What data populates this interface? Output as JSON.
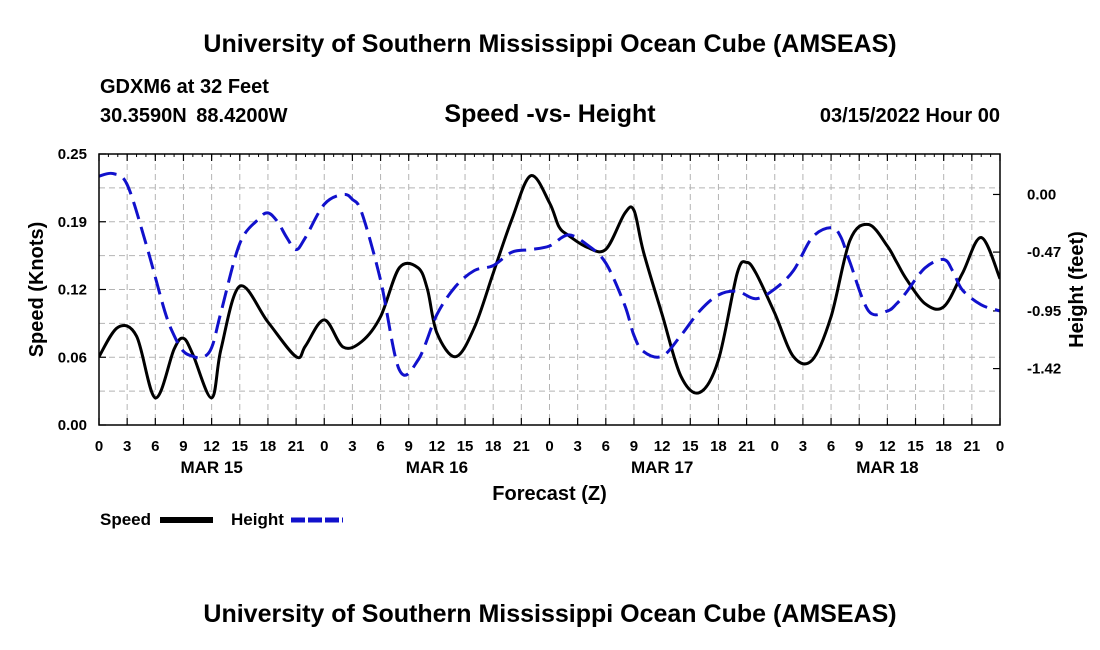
{
  "page": {
    "title_top": "University of Southern Mississippi Ocean Cube (AMSEAS)",
    "title_bottom": "University of Southern Mississippi Ocean Cube (AMSEAS)",
    "station": "GDXM6 at 32 Feet",
    "coords": "30.3590N  88.4200W",
    "datetime": "03/15/2022 Hour 00"
  },
  "colors": {
    "speed": "#000000",
    "height": "#1111cc",
    "grid": "#b4b4b4"
  },
  "chart_data": {
    "type": "line",
    "title": "Speed -vs- Height",
    "xlabel": "Forecast (Z)",
    "ylabel_left": "Speed (Knots)",
    "ylabel_right": "Height (feet)",
    "x_range_hours": [
      0,
      96
    ],
    "x_tick_labels": [
      "0",
      "3",
      "6",
      "9",
      "12",
      "15",
      "18",
      "21",
      "0",
      "3",
      "6",
      "9",
      "12",
      "15",
      "18",
      "21",
      "0",
      "3",
      "6",
      "9",
      "12",
      "15",
      "18",
      "21",
      "0",
      "3",
      "6",
      "9",
      "12",
      "15",
      "18",
      "21",
      "0"
    ],
    "day_labels": [
      {
        "label": "MAR 15",
        "hour": 12
      },
      {
        "label": "MAR 16",
        "hour": 36
      },
      {
        "label": "MAR 17",
        "hour": 60
      },
      {
        "label": "MAR 18",
        "hour": 84
      }
    ],
    "y_left": {
      "range": [
        0.0,
        0.25
      ],
      "ticks": [
        "0.00",
        "0.06",
        "0.12",
        "0.19",
        "0.25"
      ]
    },
    "y_right": {
      "range": [
        -1.88,
        0.33
      ],
      "ticks": [
        {
          "value": 0.0,
          "label": "0.00"
        },
        {
          "value": -0.47,
          "label": "-0.47"
        },
        {
          "value": -0.95,
          "label": "-0.95"
        },
        {
          "value": -1.42,
          "label": "-1.42"
        }
      ]
    },
    "legend": [
      {
        "name": "Speed",
        "style": "solid"
      },
      {
        "name": "Height",
        "style": "dashed"
      }
    ],
    "series": [
      {
        "name": "Speed",
        "axis": "left",
        "style": "solid",
        "x": [
          0,
          2,
          4,
          6,
          8,
          9,
          10,
          12,
          13,
          15,
          18,
          21,
          22,
          24,
          26,
          28,
          30,
          32,
          34,
          35,
          36,
          38,
          40,
          42,
          44,
          46,
          48,
          49,
          50,
          52,
          54,
          56,
          57,
          58,
          60,
          62,
          64,
          66,
          68,
          69,
          70,
          72,
          74,
          76,
          78,
          80,
          82,
          84,
          85,
          86,
          88,
          90,
          92,
          94,
          96
        ],
        "values": [
          0.063,
          0.09,
          0.082,
          0.025,
          0.07,
          0.08,
          0.065,
          0.025,
          0.07,
          0.128,
          0.095,
          0.063,
          0.073,
          0.097,
          0.072,
          0.077,
          0.1,
          0.145,
          0.145,
          0.125,
          0.085,
          0.063,
          0.09,
          0.14,
          0.19,
          0.23,
          0.205,
          0.183,
          0.175,
          0.164,
          0.162,
          0.195,
          0.198,
          0.16,
          0.102,
          0.045,
          0.03,
          0.06,
          0.14,
          0.15,
          0.14,
          0.103,
          0.063,
          0.06,
          0.1,
          0.17,
          0.185,
          0.165,
          0.15,
          0.135,
          0.112,
          0.109,
          0.14,
          0.173,
          0.135
        ]
      },
      {
        "name": "Height",
        "axis": "right",
        "style": "dashed",
        "x": [
          0,
          1.5,
          3,
          5,
          7,
          8,
          9,
          10,
          11,
          12,
          13,
          15,
          17,
          18,
          19,
          20,
          21,
          22,
          24,
          26,
          27,
          28,
          30,
          32,
          34,
          36,
          38,
          40,
          42,
          44,
          46,
          48,
          50,
          52,
          54,
          56,
          57,
          58,
          60,
          62,
          64,
          66,
          68,
          70,
          72,
          74,
          76,
          78,
          79,
          80,
          82,
          84,
          85,
          86,
          88,
          90,
          91,
          92,
          94,
          96
        ],
        "values": [
          0.15,
          0.17,
          0.08,
          -0.4,
          -0.95,
          -1.15,
          -1.28,
          -1.32,
          -1.33,
          -1.25,
          -0.96,
          -0.4,
          -0.2,
          -0.15,
          -0.22,
          -0.35,
          -0.45,
          -0.35,
          -0.08,
          0.0,
          -0.04,
          -0.15,
          -0.7,
          -1.43,
          -1.35,
          -0.98,
          -0.75,
          -0.62,
          -0.58,
          -0.47,
          -0.45,
          -0.42,
          -0.33,
          -0.41,
          -0.56,
          -0.9,
          -1.15,
          -1.28,
          -1.32,
          -1.15,
          -0.95,
          -0.82,
          -0.79,
          -0.85,
          -0.77,
          -0.62,
          -0.35,
          -0.27,
          -0.34,
          -0.55,
          -0.95,
          -0.95,
          -0.89,
          -0.8,
          -0.6,
          -0.53,
          -0.63,
          -0.78,
          -0.9,
          -0.95
        ]
      }
    ]
  }
}
